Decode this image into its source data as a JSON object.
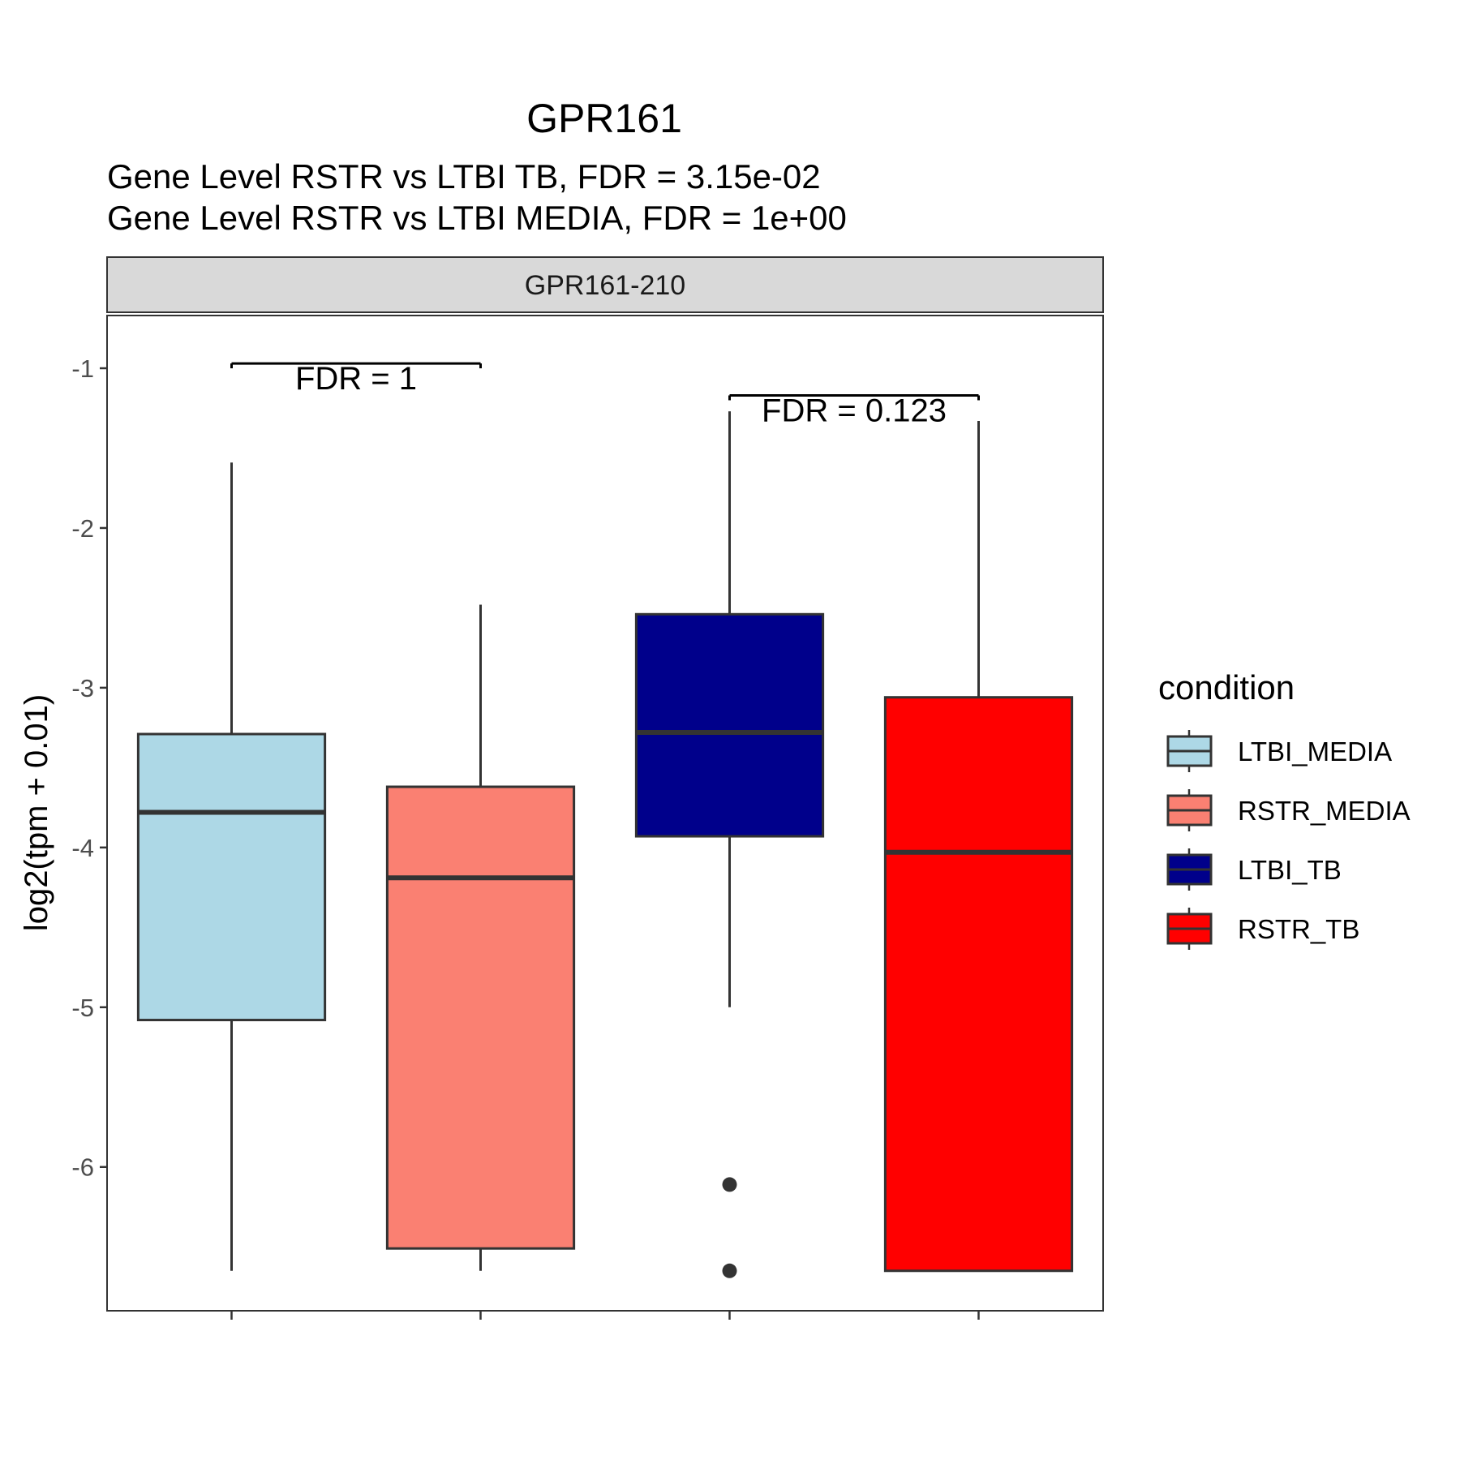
{
  "chart_data": {
    "type": "boxplot",
    "title": "GPR161",
    "subtitle_lines": [
      "Gene Level RSTR vs LTBI TB, FDR =  3.15e-02",
      "Gene Level RSTR vs LTBI MEDIA, FDR =  1e+00"
    ],
    "facet_label": "GPR161-210",
    "ylabel": "log2(tpm + 0.01)",
    "xlabel": "",
    "ylim": [
      -6.9,
      -0.67
    ],
    "yticks": [
      -1,
      -2,
      -3,
      -4,
      -5,
      -6
    ],
    "ytick_labels": [
      "-1",
      "-2",
      "-3",
      "-4",
      "-5",
      "-6"
    ],
    "grid": false,
    "legend": {
      "title": "condition",
      "placement": "right",
      "entries": [
        "LTBI_MEDIA",
        "RSTR_MEDIA",
        "LTBI_TB",
        "RSTR_TB"
      ]
    },
    "series": [
      {
        "name": "LTBI_MEDIA",
        "color": "#add8e6",
        "whisker_low": -6.65,
        "q1": -5.08,
        "median": -3.78,
        "q3": -3.29,
        "whisker_high": -1.59,
        "outliers": []
      },
      {
        "name": "RSTR_MEDIA",
        "color": "#fa8072",
        "whisker_low": -6.65,
        "q1": -6.51,
        "median": -4.19,
        "q3": -3.62,
        "whisker_high": -2.48,
        "outliers": []
      },
      {
        "name": "LTBI_TB",
        "color": "#00008b",
        "whisker_low": -5.0,
        "q1": -3.93,
        "median": -3.28,
        "q3": -2.54,
        "whisker_high": -1.27,
        "outliers": [
          -6.11,
          -6.65
        ]
      },
      {
        "name": "RSTR_TB",
        "color": "#ff0000",
        "whisker_low": -6.65,
        "q1": -6.65,
        "median": -4.03,
        "q3": -3.06,
        "whisker_high": -1.33,
        "outliers": []
      }
    ],
    "annotations": [
      {
        "from": 0,
        "to": 1,
        "y": -0.97,
        "text": "FDR =  1"
      },
      {
        "from": 2,
        "to": 3,
        "y": -1.17,
        "text": "FDR =  0.123"
      }
    ]
  }
}
